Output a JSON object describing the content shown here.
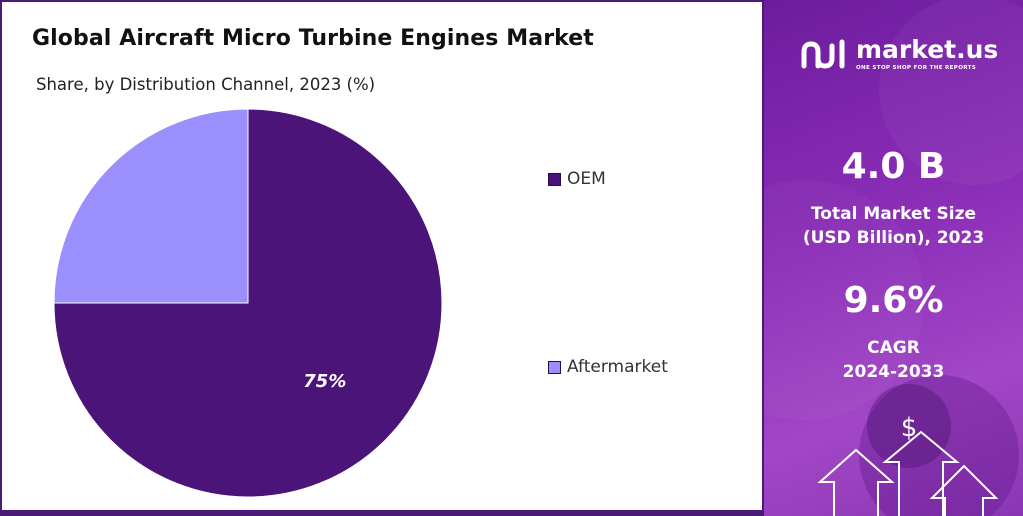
{
  "chart_data": {
    "type": "pie",
    "title": "Global Aircraft Micro Turbine Engines Market",
    "subtitle": "Share, by Distribution Channel, 2023 (%)",
    "slices": [
      {
        "name": "OEM",
        "value": 75,
        "label": "75%",
        "color": "#4b1478"
      },
      {
        "name": "Aftermarket",
        "value": 25,
        "label": "",
        "color": "#9b8ffd"
      }
    ],
    "legend_position": "right"
  },
  "brand": {
    "name": "market.us",
    "tagline": "ONE STOP SHOP FOR THE REPORTS",
    "logo_icon": "market-us-logo-icon"
  },
  "stats": {
    "market_size_value": "4.0 B",
    "market_size_label_line1": "Total Market Size",
    "market_size_label_line2": "(USD Billion), 2023",
    "cagr_value": "9.6%",
    "cagr_label_line1": "CAGR",
    "cagr_label_line2": "2024-2033"
  },
  "decoration": {
    "currency_symbol": "$",
    "icon": "growth-arrows-icon"
  },
  "colors": {
    "panel_border": "#4a1a7a",
    "right_panel": "#8c2fb8"
  }
}
